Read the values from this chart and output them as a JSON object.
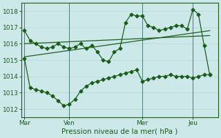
{
  "background_color": "#cce8e8",
  "grid_color": "#b8d8d8",
  "line_color": "#1a5c1a",
  "x_tick_labels": [
    "Mar",
    "Ven",
    "Mer",
    "Jeu"
  ],
  "x_tick_positions": [
    0,
    8,
    21,
    30
  ],
  "xlabel": "Pression niveau de la mer( hPa )",
  "ylim": [
    1011.5,
    1018.5
  ],
  "yticks": [
    1012,
    1013,
    1014,
    1015,
    1016,
    1017,
    1018
  ],
  "xlim": [
    -0.5,
    34.5
  ],
  "series1_x": [
    0,
    1,
    2,
    3,
    4,
    5,
    6,
    7,
    8,
    9,
    10,
    11,
    12,
    13,
    14,
    15,
    16,
    17,
    18,
    19,
    20,
    21,
    22,
    23,
    24,
    25,
    26,
    27,
    28,
    29,
    30,
    31,
    32,
    33
  ],
  "series1_y": [
    1016.8,
    1016.2,
    1016.0,
    1015.8,
    1015.7,
    1015.8,
    1016.0,
    1015.8,
    1015.7,
    1015.8,
    1016.0,
    1015.7,
    1015.9,
    1015.5,
    1015.0,
    1014.9,
    1015.5,
    1015.7,
    1017.3,
    1017.8,
    1017.7,
    1017.7,
    1017.1,
    1017.0,
    1016.8,
    1016.9,
    1017.0,
    1017.1,
    1017.1,
    1016.9,
    1018.1,
    1017.8,
    1015.9,
    1014.1
  ],
  "series2_x": [
    0,
    1,
    2,
    3,
    4,
    5,
    6,
    7,
    8,
    9,
    10,
    11,
    12,
    13,
    14,
    15,
    16,
    17,
    18,
    19,
    20,
    21,
    22,
    23,
    24,
    25,
    26,
    27,
    28,
    29,
    30,
    31,
    32,
    33
  ],
  "series2_y": [
    1015.1,
    1013.3,
    1013.2,
    1013.1,
    1013.0,
    1012.8,
    1012.5,
    1012.2,
    1012.3,
    1012.6,
    1013.1,
    1013.4,
    1013.6,
    1013.7,
    1013.8,
    1013.9,
    1014.0,
    1014.1,
    1014.2,
    1014.3,
    1014.4,
    1013.7,
    1013.8,
    1013.9,
    1014.0,
    1014.0,
    1014.1,
    1014.0,
    1014.0,
    1014.0,
    1013.9,
    1014.0,
    1014.1,
    1014.1
  ],
  "trend1_x": [
    0,
    33
  ],
  "trend1_y": [
    1015.2,
    1016.8
  ],
  "trend2_x": [
    0,
    33
  ],
  "trend2_y": [
    1016.0,
    1016.5
  ],
  "vline_x": [
    0,
    8,
    21,
    30
  ],
  "vline_color": "#4a7a7a",
  "marker_size": 2.5,
  "linewidth": 0.9
}
